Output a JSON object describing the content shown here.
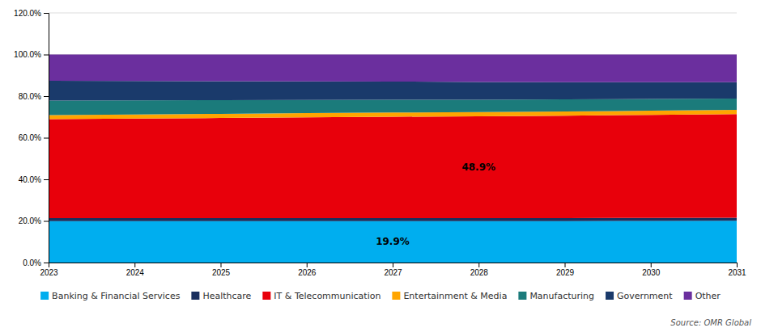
{
  "chart_data": {
    "type": "area",
    "stacked": true,
    "x": [
      2023,
      2024,
      2025,
      2026,
      2027,
      2028,
      2029,
      2030,
      2031
    ],
    "series": [
      {
        "name": "Banking & Financial Services",
        "color": "#00AEEF",
        "values": [
          19.9,
          19.9,
          19.9,
          19.9,
          19.9,
          19.9,
          19.9,
          20.0,
          20.1
        ]
      },
      {
        "name": "Healthcare",
        "color": "#1A2F5E",
        "values": [
          1.5,
          1.5,
          1.5,
          1.5,
          1.5,
          1.5,
          1.5,
          1.5,
          1.5
        ]
      },
      {
        "name": "IT & Telecommunication",
        "color": "#E8000B",
        "values": [
          47.5,
          47.8,
          48.1,
          48.4,
          48.7,
          48.9,
          49.2,
          49.5,
          49.8
        ]
      },
      {
        "name": "Entertainment & Media",
        "color": "#FFA500",
        "values": [
          2.0,
          2.0,
          2.0,
          2.0,
          2.0,
          2.0,
          2.0,
          2.0,
          2.0
        ]
      },
      {
        "name": "Manufacturing",
        "color": "#1B7B7B",
        "values": [
          7.0,
          6.8,
          6.6,
          6.4,
          6.2,
          6.0,
          5.8,
          5.6,
          5.4
        ]
      },
      {
        "name": "Government",
        "color": "#1A3A6B",
        "values": [
          9.5,
          9.3,
          9.1,
          8.9,
          8.7,
          8.5,
          8.3,
          8.1,
          7.9
        ]
      },
      {
        "name": "Other",
        "color": "#6B2F9E",
        "values": [
          12.6,
          12.7,
          12.8,
          12.9,
          13.0,
          13.2,
          13.3,
          13.3,
          13.3
        ]
      }
    ],
    "xlim": [
      2023,
      2031
    ],
    "xticks": [
      2023,
      2024,
      2025,
      2026,
      2027,
      2028,
      2029,
      2030,
      2031
    ],
    "ylim": [
      0,
      120
    ],
    "yticks": [
      {
        "value": 0,
        "label": "0.0%"
      },
      {
        "value": 20,
        "label": "20.0%"
      },
      {
        "value": 40,
        "label": "40.0%"
      },
      {
        "value": 60,
        "label": "60.0%"
      },
      {
        "value": 80,
        "label": "80.0%"
      },
      {
        "value": 100,
        "label": "100.0%"
      },
      {
        "value": 120,
        "label": "120.0%"
      }
    ],
    "grid": true,
    "legend": "bottom",
    "annotations": [
      {
        "text": "19.9%",
        "x": 2027,
        "series": "Banking & Financial Services"
      },
      {
        "text": "48.9%",
        "x": 2028,
        "series": "IT & Telecommunication"
      }
    ],
    "source": "Source: OMR Global"
  }
}
